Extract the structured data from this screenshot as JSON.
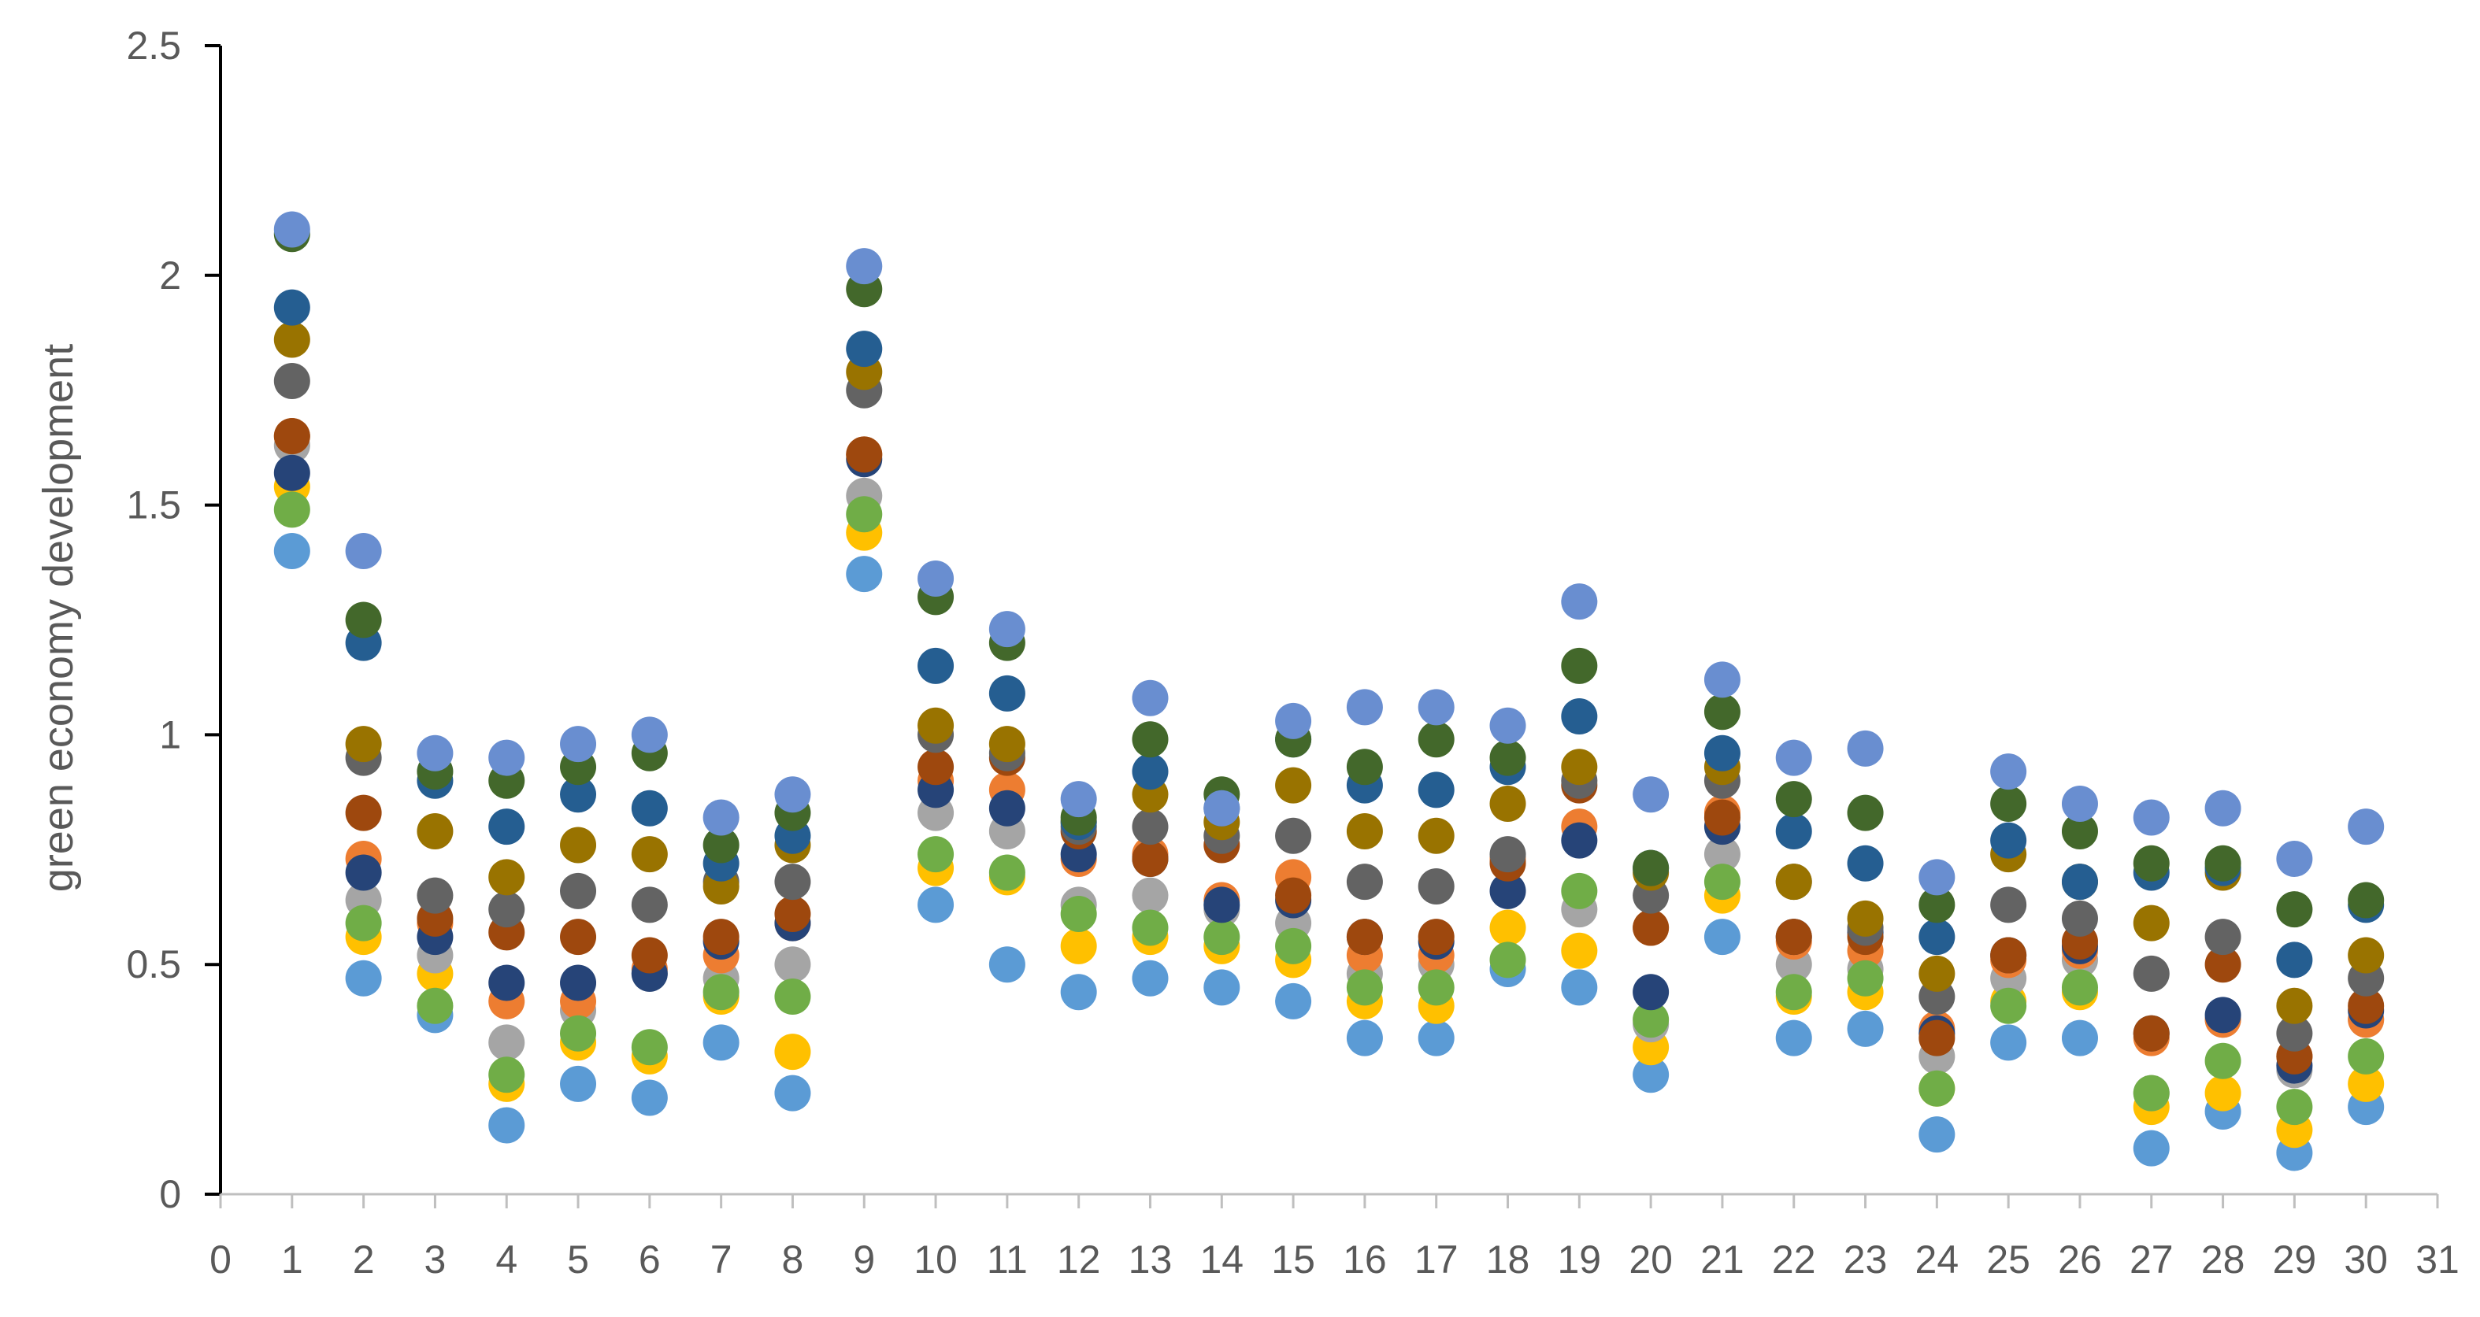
{
  "chart_data": {
    "type": "scatter",
    "title": "",
    "xlabel": "",
    "ylabel": "green economy development",
    "xlim": [
      0,
      31
    ],
    "ylim": [
      0,
      2.5
    ],
    "x_ticks": [
      0,
      1,
      2,
      3,
      4,
      5,
      6,
      7,
      8,
      9,
      10,
      11,
      12,
      13,
      14,
      15,
      16,
      17,
      18,
      19,
      20,
      21,
      22,
      23,
      24,
      25,
      26,
      27,
      28,
      29,
      30,
      31
    ],
    "y_ticks": [
      0,
      0.5,
      1,
      1.5,
      2,
      2.5
    ],
    "y_tick_labels": [
      "0",
      "0.5",
      "1",
      "1.5",
      "2",
      "2.5"
    ],
    "legend": "none",
    "grid": false,
    "x": [
      1,
      2,
      3,
      4,
      5,
      6,
      7,
      8,
      9,
      10,
      11,
      12,
      13,
      14,
      15,
      16,
      17,
      18,
      19,
      20,
      21,
      22,
      23,
      24,
      25,
      26,
      27,
      28,
      29,
      30
    ],
    "series": [
      {
        "color": "#5b9bd5",
        "values": [
          1.4,
          0.47,
          0.39,
          0.15,
          0.24,
          0.21,
          0.33,
          0.22,
          1.35,
          0.63,
          0.5,
          0.44,
          0.47,
          0.45,
          0.42,
          0.34,
          0.34,
          0.49,
          0.45,
          0.26,
          0.56,
          0.34,
          0.36,
          0.13,
          0.33,
          0.34,
          0.1,
          0.18,
          0.09,
          0.19
        ]
      },
      {
        "color": "#ffc000",
        "values": [
          1.54,
          0.56,
          0.48,
          0.24,
          0.33,
          0.3,
          0.43,
          0.31,
          1.44,
          0.71,
          0.69,
          0.54,
          0.56,
          0.54,
          0.51,
          0.42,
          0.41,
          0.58,
          0.53,
          0.32,
          0.65,
          0.43,
          0.44,
          0.23,
          0.42,
          0.44,
          0.19,
          0.22,
          0.14,
          0.24
        ]
      },
      {
        "color": "#a5a5a5",
        "values": [
          1.63,
          0.64,
          0.52,
          0.33,
          0.4,
          0.48,
          0.47,
          0.5,
          1.52,
          0.83,
          0.79,
          0.63,
          0.65,
          0.62,
          0.59,
          0.48,
          0.5,
          0.73,
          0.62,
          0.37,
          0.74,
          0.5,
          0.49,
          0.3,
          0.47,
          0.51,
          0.22,
          0.38,
          0.27,
          0.38
        ]
      },
      {
        "color": "#ed7d31",
        "values": [
          1.65,
          0.73,
          0.59,
          0.42,
          0.42,
          0.49,
          0.52,
          0.59,
          1.61,
          0.9,
          0.88,
          0.73,
          0.74,
          0.64,
          0.69,
          0.52,
          0.52,
          0.73,
          0.8,
          0.58,
          0.83,
          0.55,
          0.53,
          0.36,
          0.51,
          0.53,
          0.34,
          0.38,
          0.3,
          0.38
        ]
      },
      {
        "color": "#70ad47",
        "values": [
          1.49,
          0.59,
          0.41,
          0.26,
          0.35,
          0.32,
          0.44,
          0.43,
          1.48,
          0.74,
          0.7,
          0.61,
          0.58,
          0.56,
          0.54,
          0.45,
          0.45,
          0.51,
          0.66,
          0.38,
          0.68,
          0.44,
          0.47,
          0.23,
          0.41,
          0.45,
          0.22,
          0.29,
          0.19,
          0.3
        ]
      },
      {
        "color": "#264478",
        "values": [
          1.57,
          0.7,
          0.56,
          0.46,
          0.46,
          0.48,
          0.55,
          0.59,
          1.6,
          0.88,
          0.84,
          0.74,
          0.73,
          0.63,
          0.64,
          0.56,
          0.55,
          0.66,
          0.77,
          0.44,
          0.8,
          0.56,
          0.57,
          0.35,
          0.52,
          0.54,
          0.35,
          0.39,
          0.28,
          0.4
        ]
      },
      {
        "color": "#9e480e",
        "values": [
          1.65,
          0.83,
          0.6,
          0.57,
          0.56,
          0.52,
          0.56,
          0.61,
          1.61,
          0.93,
          0.95,
          0.79,
          0.73,
          0.76,
          0.65,
          0.56,
          0.56,
          0.72,
          0.89,
          0.58,
          0.82,
          0.56,
          0.56,
          0.34,
          0.52,
          0.55,
          0.35,
          0.5,
          0.3,
          0.41
        ]
      },
      {
        "color": "#636363",
        "values": [
          1.77,
          0.95,
          0.65,
          0.62,
          0.66,
          0.63,
          0.68,
          0.68,
          1.75,
          1.0,
          0.96,
          0.8,
          0.8,
          0.78,
          0.78,
          0.68,
          0.67,
          0.74,
          0.9,
          0.65,
          0.9,
          0.68,
          0.58,
          0.43,
          0.63,
          0.6,
          0.48,
          0.56,
          0.35,
          0.47
        ]
      },
      {
        "color": "#997300",
        "values": [
          1.86,
          0.98,
          0.79,
          0.69,
          0.76,
          0.74,
          0.67,
          0.76,
          1.79,
          1.02,
          0.98,
          0.81,
          0.87,
          0.81,
          0.89,
          0.79,
          0.78,
          0.85,
          0.93,
          0.7,
          0.93,
          0.68,
          0.6,
          0.48,
          0.74,
          0.68,
          0.59,
          0.7,
          0.41,
          0.52
        ]
      },
      {
        "color": "#255e91",
        "values": [
          1.93,
          1.2,
          0.9,
          0.8,
          0.87,
          0.84,
          0.72,
          0.78,
          1.84,
          1.15,
          1.09,
          0.81,
          0.92,
          0.84,
          0.99,
          0.89,
          0.88,
          0.93,
          1.04,
          0.71,
          0.96,
          0.79,
          0.72,
          0.56,
          0.77,
          0.68,
          0.7,
          0.71,
          0.51,
          0.63
        ]
      },
      {
        "color": "#43682b",
        "values": [
          2.09,
          1.25,
          0.92,
          0.9,
          0.93,
          0.96,
          0.76,
          0.83,
          1.97,
          1.3,
          1.2,
          0.82,
          0.99,
          0.87,
          0.99,
          0.93,
          0.99,
          0.95,
          1.15,
          0.71,
          1.05,
          0.86,
          0.83,
          0.63,
          0.85,
          0.79,
          0.72,
          0.72,
          0.62,
          0.64
        ]
      },
      {
        "color": "#698ed0",
        "values": [
          2.1,
          1.4,
          0.96,
          0.95,
          0.98,
          1.0,
          0.82,
          0.87,
          2.02,
          1.34,
          1.23,
          0.86,
          1.08,
          0.84,
          1.03,
          1.06,
          1.06,
          1.02,
          1.29,
          0.87,
          1.12,
          0.95,
          0.97,
          0.69,
          0.92,
          0.85,
          0.82,
          0.84,
          0.73,
          0.8
        ]
      }
    ]
  }
}
